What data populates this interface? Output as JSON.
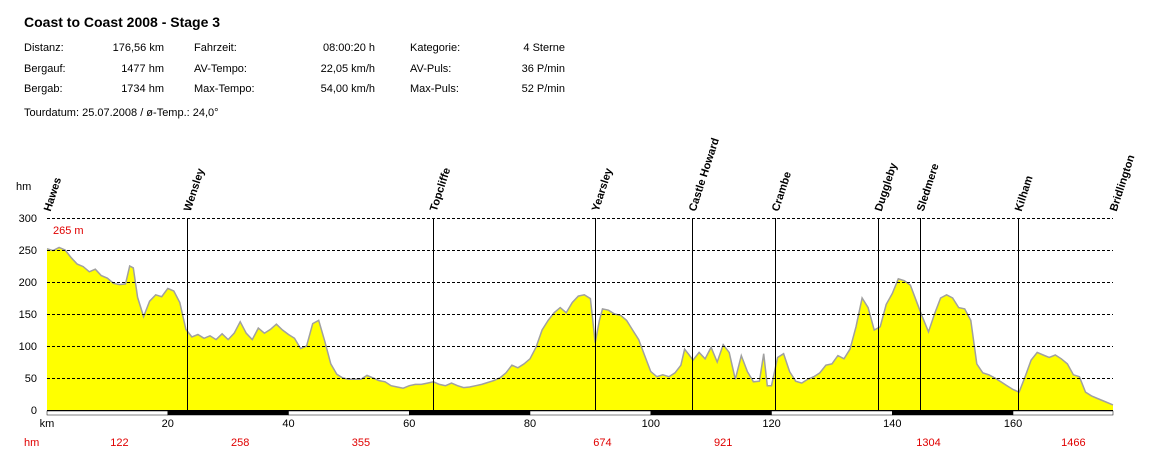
{
  "header": {
    "title": "Coast to Coast 2008 - Stage 3",
    "stats": [
      {
        "label": "Distanz:",
        "value": "176,56 km"
      },
      {
        "label": "Bergauf:",
        "value": "1477 hm"
      },
      {
        "label": "Bergab:",
        "value": "1734 hm"
      },
      {
        "label": "Fahrzeit:",
        "value": "08:00:20 h"
      },
      {
        "label": "AV-Tempo:",
        "value": "22,05 km/h"
      },
      {
        "label": "Max-Tempo:",
        "value": "54,00 km/h"
      },
      {
        "label": "Kategorie:",
        "value": "4 Sterne"
      },
      {
        "label": "AV-Puls:",
        "value": "36 P/min"
      },
      {
        "label": "Max-Puls:",
        "value": "52 P/min"
      }
    ],
    "tourdate": "Tourdatum: 25.07.2008  /  ø-Temp.: 24,0°"
  },
  "colors": {
    "fill": "#ffff00",
    "stroke": "#a0a0a0",
    "red": "#e00000",
    "grid": "#000000"
  },
  "chart_data": {
    "type": "area",
    "xlabel": "km",
    "ylabel": "hm",
    "xlim": [
      0,
      176.56
    ],
    "ylim": [
      0,
      300
    ],
    "xticks": [
      20,
      40,
      60,
      80,
      100,
      120,
      140,
      160
    ],
    "yticks": [
      0,
      50,
      100,
      150,
      200,
      250,
      300
    ],
    "max_label": "265 m",
    "cumulative_label": "hm",
    "cumulative_ascent": [
      {
        "x": 12,
        "label": "122"
      },
      {
        "x": 32,
        "label": "258"
      },
      {
        "x": 52,
        "label": "355"
      },
      {
        "x": 92,
        "label": "674"
      },
      {
        "x": 112,
        "label": "921"
      },
      {
        "x": 146,
        "label": "1304"
      },
      {
        "x": 170,
        "label": "1466"
      }
    ],
    "waypoints": [
      {
        "name": "Hawes",
        "x": 0
      },
      {
        "name": "Wensley",
        "x": 23.2
      },
      {
        "name": "Topcliffe",
        "x": 63.9
      },
      {
        "name": "Yearsley",
        "x": 90.7
      },
      {
        "name": "Castle Howard",
        "x": 106.9
      },
      {
        "name": "Crambe",
        "x": 120.6
      },
      {
        "name": "Duggleby",
        "x": 137.6
      },
      {
        "name": "Sledmere",
        "x": 144.6
      },
      {
        "name": "Kilham",
        "x": 160.9
      },
      {
        "name": "Bridlington",
        "x": 176.56
      }
    ],
    "elevation": [
      [
        0,
        252
      ],
      [
        1,
        249
      ],
      [
        2,
        254
      ],
      [
        3,
        250
      ],
      [
        4,
        238
      ],
      [
        5,
        228
      ],
      [
        6,
        224
      ],
      [
        7,
        216
      ],
      [
        8,
        220
      ],
      [
        9,
        210
      ],
      [
        10,
        206
      ],
      [
        11,
        198
      ],
      [
        12,
        196
      ],
      [
        13,
        197
      ],
      [
        13.7,
        225
      ],
      [
        14.3,
        222
      ],
      [
        15,
        176
      ],
      [
        16,
        146
      ],
      [
        17,
        170
      ],
      [
        18,
        180
      ],
      [
        19,
        177
      ],
      [
        20,
        190
      ],
      [
        21,
        186
      ],
      [
        22,
        168
      ],
      [
        23,
        126
      ],
      [
        24,
        114
      ],
      [
        25,
        118
      ],
      [
        26,
        112
      ],
      [
        27,
        116
      ],
      [
        28,
        110
      ],
      [
        29,
        119
      ],
      [
        30,
        110
      ],
      [
        31,
        120
      ],
      [
        32,
        138
      ],
      [
        33,
        120
      ],
      [
        34,
        110
      ],
      [
        35,
        128
      ],
      [
        36,
        120
      ],
      [
        37,
        126
      ],
      [
        38,
        134
      ],
      [
        39,
        125
      ],
      [
        40,
        118
      ],
      [
        41,
        112
      ],
      [
        42,
        96
      ],
      [
        43,
        100
      ],
      [
        44,
        135
      ],
      [
        45,
        140
      ],
      [
        46,
        108
      ],
      [
        47,
        72
      ],
      [
        48,
        56
      ],
      [
        49,
        50
      ],
      [
        50,
        48
      ],
      [
        51,
        48
      ],
      [
        52,
        48
      ],
      [
        53,
        54
      ],
      [
        54,
        50
      ],
      [
        55,
        46
      ],
      [
        56,
        44
      ],
      [
        57,
        38
      ],
      [
        58,
        36
      ],
      [
        59,
        34
      ],
      [
        60,
        38
      ],
      [
        61,
        40
      ],
      [
        62,
        40
      ],
      [
        63,
        42
      ],
      [
        64,
        44
      ],
      [
        65,
        40
      ],
      [
        66,
        38
      ],
      [
        67,
        42
      ],
      [
        68,
        38
      ],
      [
        69,
        35
      ],
      [
        70,
        36
      ],
      [
        71,
        38
      ],
      [
        72,
        40
      ],
      [
        73,
        43
      ],
      [
        74,
        46
      ],
      [
        75,
        50
      ],
      [
        76,
        58
      ],
      [
        77,
        70
      ],
      [
        78,
        66
      ],
      [
        79,
        72
      ],
      [
        80,
        80
      ],
      [
        81,
        98
      ],
      [
        82,
        125
      ],
      [
        83,
        140
      ],
      [
        84,
        152
      ],
      [
        85,
        160
      ],
      [
        86,
        152
      ],
      [
        87,
        168
      ],
      [
        88,
        178
      ],
      [
        89,
        180
      ],
      [
        90,
        174
      ],
      [
        90.8,
        105
      ],
      [
        91.5,
        140
      ],
      [
        92,
        158
      ],
      [
        93,
        156
      ],
      [
        94,
        150
      ],
      [
        95,
        148
      ],
      [
        96,
        140
      ],
      [
        97,
        125
      ],
      [
        98,
        110
      ],
      [
        99,
        85
      ],
      [
        100,
        60
      ],
      [
        101,
        52
      ],
      [
        102,
        55
      ],
      [
        103,
        52
      ],
      [
        104,
        58
      ],
      [
        105,
        70
      ],
      [
        105.6,
        95
      ],
      [
        106.2,
        88
      ],
      [
        107,
        78
      ],
      [
        108,
        90
      ],
      [
        109,
        80
      ],
      [
        110,
        98
      ],
      [
        111,
        75
      ],
      [
        112,
        102
      ],
      [
        113,
        90
      ],
      [
        114,
        48
      ],
      [
        115,
        85
      ],
      [
        116,
        60
      ],
      [
        117,
        44
      ],
      [
        118,
        45
      ],
      [
        118.7,
        88
      ],
      [
        119.3,
        38
      ],
      [
        120,
        38
      ],
      [
        121,
        82
      ],
      [
        122,
        88
      ],
      [
        123,
        60
      ],
      [
        124,
        45
      ],
      [
        125,
        42
      ],
      [
        126,
        48
      ],
      [
        127,
        52
      ],
      [
        128,
        58
      ],
      [
        129,
        70
      ],
      [
        130,
        72
      ],
      [
        131,
        85
      ],
      [
        132,
        80
      ],
      [
        133,
        95
      ],
      [
        134,
        130
      ],
      [
        135,
        175
      ],
      [
        136,
        160
      ],
      [
        137,
        125
      ],
      [
        138,
        130
      ],
      [
        139,
        165
      ],
      [
        140,
        182
      ],
      [
        141,
        205
      ],
      [
        142,
        202
      ],
      [
        143,
        195
      ],
      [
        144,
        170
      ],
      [
        145,
        145
      ],
      [
        146,
        122
      ],
      [
        147,
        150
      ],
      [
        148,
        175
      ],
      [
        149,
        180
      ],
      [
        150,
        175
      ],
      [
        151,
        160
      ],
      [
        152,
        158
      ],
      [
        153,
        140
      ],
      [
        154,
        72
      ],
      [
        155,
        58
      ],
      [
        156,
        55
      ],
      [
        157,
        50
      ],
      [
        158,
        44
      ],
      [
        159,
        38
      ],
      [
        160,
        32
      ],
      [
        161,
        28
      ],
      [
        162,
        52
      ],
      [
        163,
        78
      ],
      [
        164,
        90
      ],
      [
        165,
        86
      ],
      [
        166,
        82
      ],
      [
        167,
        86
      ],
      [
        168,
        80
      ],
      [
        169,
        72
      ],
      [
        170,
        55
      ],
      [
        171,
        52
      ],
      [
        172,
        28
      ],
      [
        173,
        22
      ],
      [
        174,
        18
      ],
      [
        175,
        14
      ],
      [
        176.56,
        8
      ]
    ]
  }
}
